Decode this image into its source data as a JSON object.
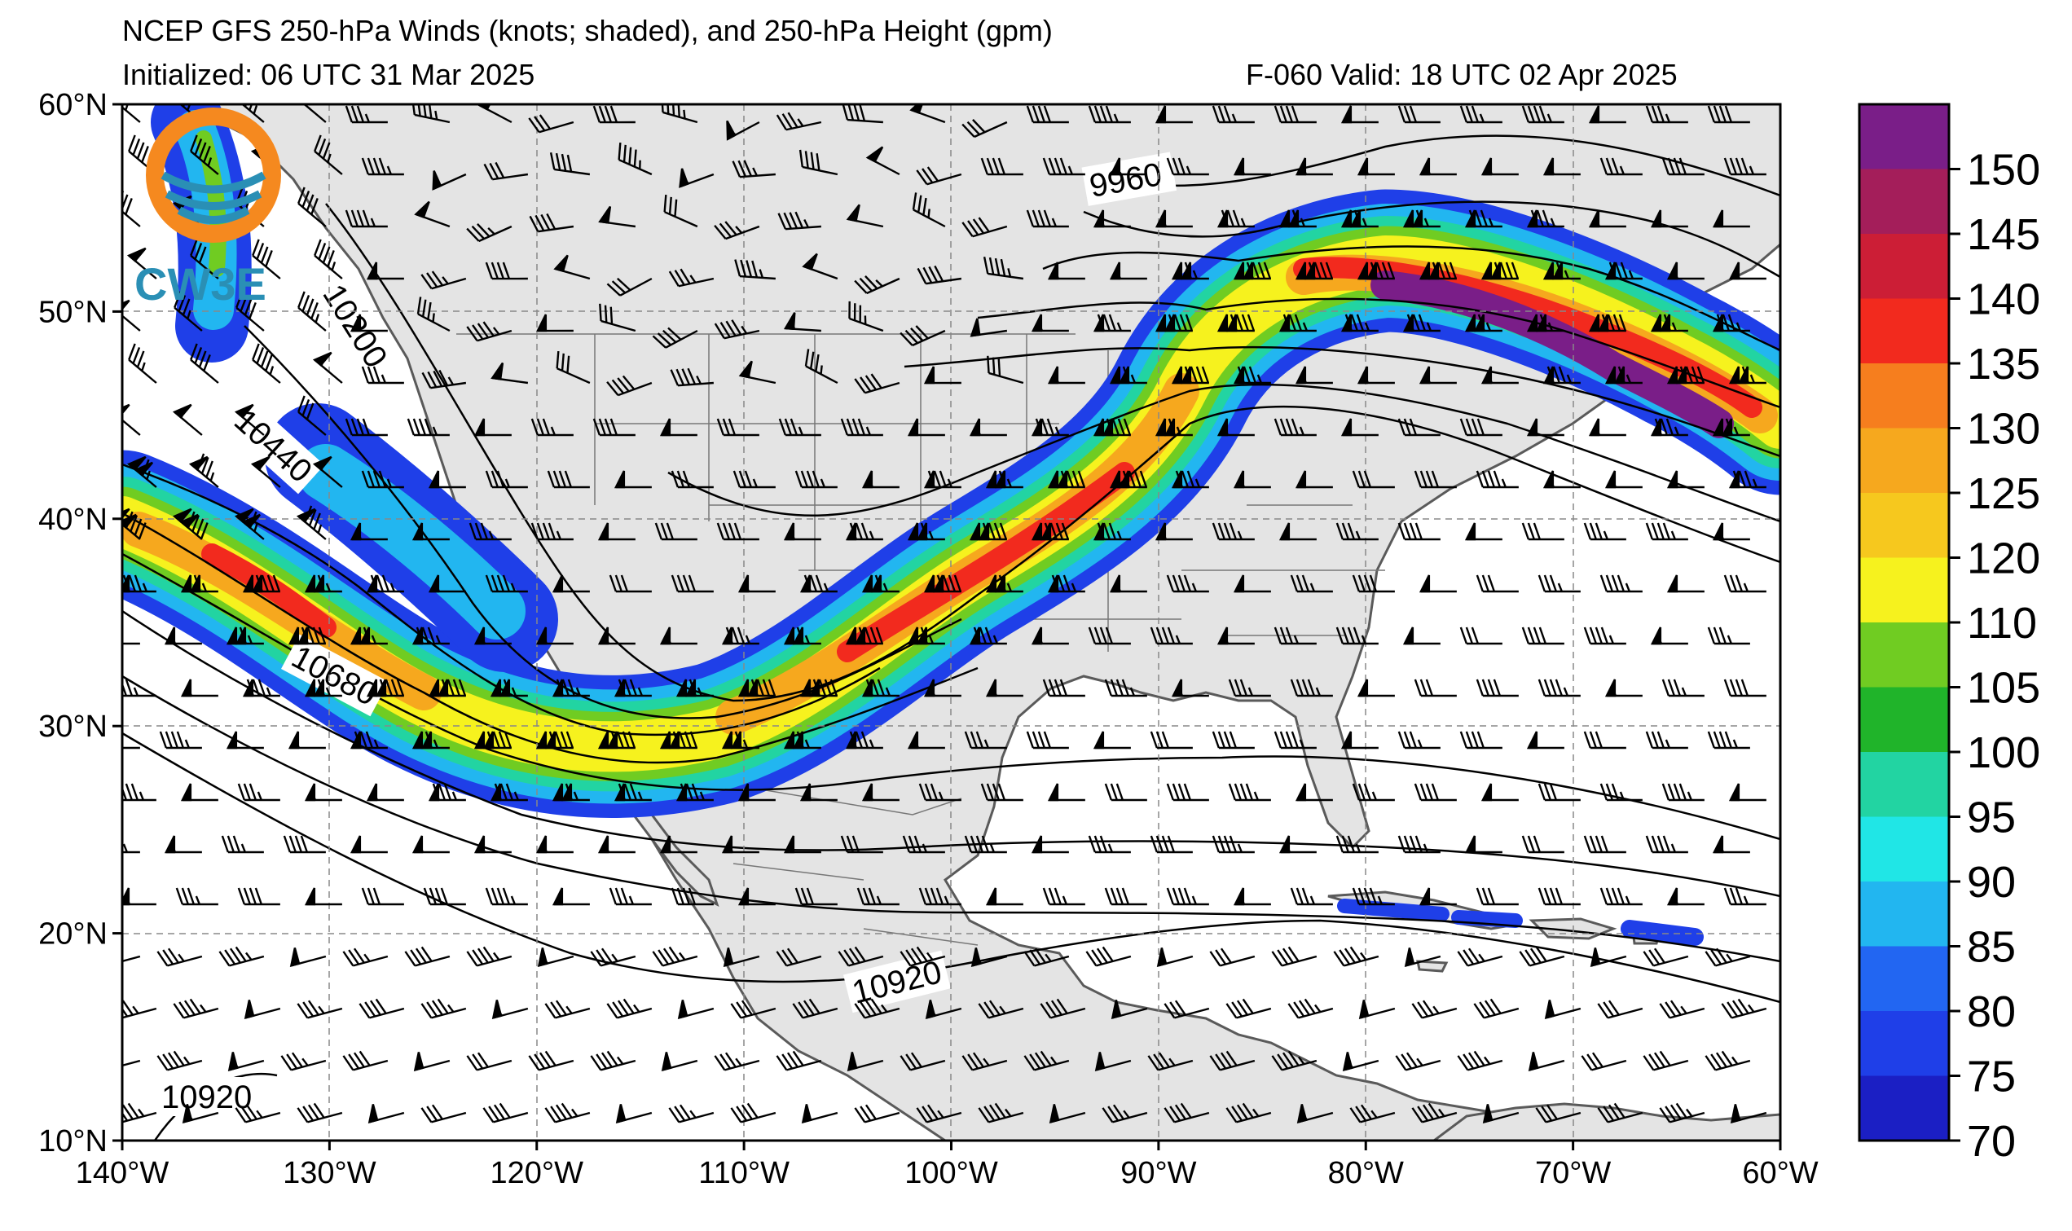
{
  "header": {
    "title": "NCEP GFS 250-hPa Winds (knots; shaded), and 250-hPa Height (gpm)",
    "initialized": "Initialized: 06 UTC 31 Mar 2025",
    "valid": "F-060  Valid: 18 UTC 02 Apr 2025"
  },
  "logo": {
    "text": "CW3E"
  },
  "map": {
    "lon_ticks": [
      "140°W",
      "130°W",
      "120°W",
      "110°W",
      "100°W",
      "90°W",
      "80°W",
      "70°W",
      "60°W"
    ],
    "lat_ticks": [
      "10°N",
      "20°N",
      "30°N",
      "40°N",
      "50°N",
      "60°N"
    ],
    "contour_labels": [
      "9960",
      "10200",
      "10440",
      "10680",
      "10920",
      "10920"
    ]
  },
  "colorbar": {
    "levels": [
      "70",
      "75",
      "80",
      "85",
      "90",
      "95",
      "100",
      "105",
      "110",
      "120",
      "125",
      "130",
      "135",
      "140",
      "145",
      "150"
    ],
    "colors": [
      "#1b1fc4",
      "#1f3fe8",
      "#2266f2",
      "#22b6f0",
      "#20e6e6",
      "#22d4a2",
      "#20b42a",
      "#70cc22",
      "#f6f21e",
      "#f6c81e",
      "#f6a81e",
      "#f67e1e",
      "#f22a1e",
      "#cc1e36",
      "#a41e5a",
      "#7a1e88"
    ]
  }
}
